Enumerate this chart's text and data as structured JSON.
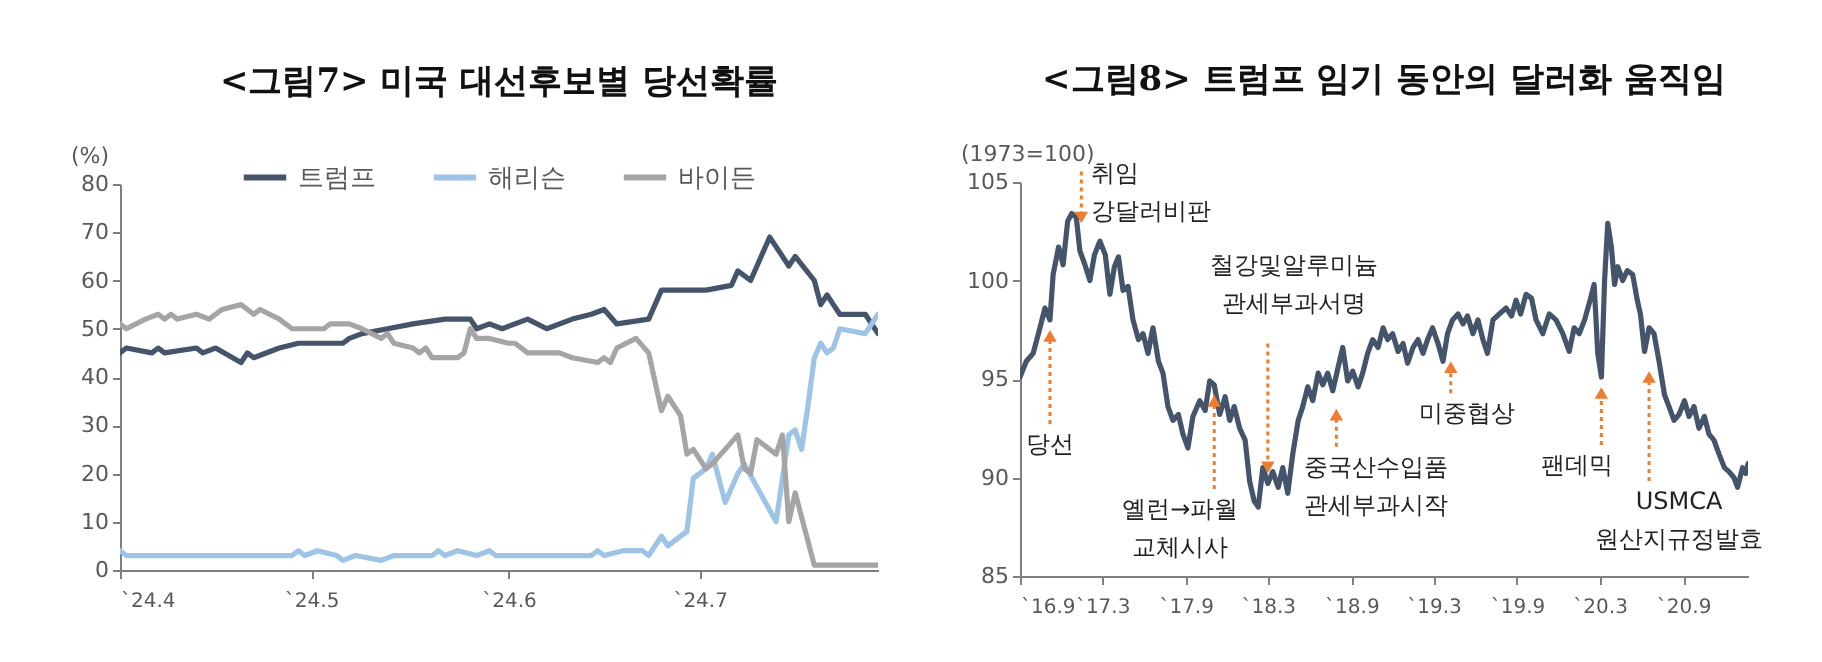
{
  "chart_data": [
    {
      "type": "line",
      "title": "<그림7> 미국 대선후보별 당선확률",
      "ylabel": "(%)",
      "legend": "top",
      "marker": "none",
      "line_style": "solid",
      "xlim": [
        "2024-04-01",
        "2024-07-29"
      ],
      "xticks": [
        {
          "value": "2024-04-01",
          "label": "`24.4"
        },
        {
          "value": "2024-05-01",
          "label": "`24.5"
        },
        {
          "value": "2024-06-01",
          "label": "`24.6"
        },
        {
          "value": "2024-07-01",
          "label": "`24.7"
        }
      ],
      "ylim": [
        0,
        80
      ],
      "yticks": [
        0,
        10,
        20,
        30,
        40,
        50,
        60,
        70,
        80
      ],
      "series": [
        {
          "name": "트럼프",
          "color": "#44546a",
          "x": [
            "2024-04-01",
            "2024-04-02",
            "2024-04-06",
            "2024-04-07",
            "2024-04-08",
            "2024-04-13",
            "2024-04-14",
            "2024-04-16",
            "2024-04-20",
            "2024-04-21",
            "2024-04-22",
            "2024-04-26",
            "2024-04-29",
            "2024-05-06",
            "2024-05-07",
            "2024-05-09",
            "2024-05-13",
            "2024-05-17",
            "2024-05-22",
            "2024-05-26",
            "2024-05-27",
            "2024-05-29",
            "2024-05-31",
            "2024-06-02",
            "2024-06-04",
            "2024-06-07",
            "2024-06-11",
            "2024-06-14",
            "2024-06-16",
            "2024-06-18",
            "2024-06-23",
            "2024-06-25",
            "2024-07-02",
            "2024-07-06",
            "2024-07-07",
            "2024-07-09",
            "2024-07-12",
            "2024-07-15",
            "2024-07-16",
            "2024-07-19",
            "2024-07-20",
            "2024-07-21",
            "2024-07-22",
            "2024-07-23",
            "2024-07-27",
            "2024-07-29"
          ],
          "values": [
            45,
            46,
            45,
            46,
            45,
            46,
            45,
            46,
            43,
            45,
            44,
            46,
            47,
            47,
            48,
            49,
            50,
            51,
            52,
            52,
            50,
            51,
            50,
            51,
            52,
            50,
            52,
            53,
            54,
            51,
            52,
            58,
            58,
            59,
            62,
            60,
            69,
            63,
            65,
            60,
            55,
            57,
            55,
            53,
            53,
            49
          ]
        },
        {
          "name": "해리슨",
          "color": "#9dc3e6",
          "x": [
            "2024-04-01",
            "2024-04-02",
            "2024-04-28",
            "2024-04-29",
            "2024-04-30",
            "2024-05-02",
            "2024-05-05",
            "2024-05-06",
            "2024-05-08",
            "2024-05-12",
            "2024-05-14",
            "2024-05-20",
            "2024-05-21",
            "2024-05-22",
            "2024-05-24",
            "2024-05-27",
            "2024-05-29",
            "2024-05-30",
            "2024-06-14",
            "2024-06-15",
            "2024-06-16",
            "2024-06-19",
            "2024-06-22",
            "2024-06-23",
            "2024-06-25",
            "2024-06-26",
            "2024-06-29",
            "2024-06-30",
            "2024-07-02",
            "2024-07-03",
            "2024-07-05",
            "2024-07-07",
            "2024-07-08",
            "2024-07-13",
            "2024-07-15",
            "2024-07-16",
            "2024-07-17",
            "2024-07-18",
            "2024-07-19",
            "2024-07-20",
            "2024-07-21",
            "2024-07-22",
            "2024-07-23",
            "2024-07-27",
            "2024-07-29"
          ],
          "values": [
            4,
            3,
            3,
            4,
            3,
            4,
            3,
            2,
            3,
            2,
            3,
            3,
            4,
            3,
            4,
            3,
            4,
            3,
            3,
            4,
            3,
            4,
            4,
            3,
            7,
            5,
            8,
            19,
            21,
            24,
            14,
            20,
            22,
            10,
            28,
            29,
            25,
            34,
            44,
            47,
            45,
            46,
            50,
            49,
            53
          ]
        },
        {
          "name": "바이든",
          "color": "#a5a5a5",
          "x": [
            "2024-04-01",
            "2024-04-02",
            "2024-04-05",
            "2024-04-07",
            "2024-04-08",
            "2024-04-09",
            "2024-04-10",
            "2024-04-13",
            "2024-04-15",
            "2024-04-17",
            "2024-04-20",
            "2024-04-22",
            "2024-04-23",
            "2024-04-26",
            "2024-04-28",
            "2024-05-03",
            "2024-05-04",
            "2024-05-07",
            "2024-05-09",
            "2024-05-12",
            "2024-05-13",
            "2024-05-14",
            "2024-05-17",
            "2024-05-18",
            "2024-05-19",
            "2024-05-20",
            "2024-05-24",
            "2024-05-25",
            "2024-05-26",
            "2024-05-27",
            "2024-05-29",
            "2024-06-01",
            "2024-06-02",
            "2024-06-04",
            "2024-06-09",
            "2024-06-11",
            "2024-06-15",
            "2024-06-16",
            "2024-06-17",
            "2024-06-18",
            "2024-06-21",
            "2024-06-23",
            "2024-06-25",
            "2024-06-26",
            "2024-06-28",
            "2024-06-29",
            "2024-06-30",
            "2024-07-02",
            "2024-07-03",
            "2024-07-07",
            "2024-07-08",
            "2024-07-09",
            "2024-07-10",
            "2024-07-13",
            "2024-07-14",
            "2024-07-15",
            "2024-07-16",
            "2024-07-19",
            "2024-07-29"
          ],
          "values": [
            51,
            50,
            52,
            53,
            52,
            53,
            52,
            53,
            52,
            54,
            55,
            53,
            54,
            52,
            50,
            50,
            51,
            51,
            50,
            48,
            49,
            47,
            46,
            45,
            46,
            44,
            44,
            45,
            50,
            48,
            48,
            47,
            47,
            45,
            45,
            44,
            43,
            44,
            43,
            46,
            48,
            45,
            33,
            36,
            32,
            24,
            25,
            21,
            22,
            28,
            21,
            20,
            27,
            24,
            28,
            10,
            16,
            1,
            1
          ]
        }
      ]
    },
    {
      "type": "line",
      "title": "<그림8> 트럼프 임기 동안의 달러화 움직임",
      "ylabel": "(1973=100)",
      "marker": "none",
      "line_style": "solid",
      "xlim": [
        "2016-09-01",
        "2021-01-22"
      ],
      "xticks": [
        {
          "value": "2016-09-01",
          "label": "`16.9"
        },
        {
          "value": "2017-03-01",
          "label": "`17.3"
        },
        {
          "value": "2017-09-01",
          "label": "`17.9"
        },
        {
          "value": "2018-03-01",
          "label": "`18.3"
        },
        {
          "value": "2018-09-01",
          "label": "`18.9"
        },
        {
          "value": "2019-03-01",
          "label": "`19.3"
        },
        {
          "value": "2019-09-01",
          "label": "`19.9"
        },
        {
          "value": "2020-03-01",
          "label": "`20.3"
        },
        {
          "value": "2020-09-01",
          "label": "`20.9"
        }
      ],
      "ylim": [
        85,
        105
      ],
      "yticks": [
        85,
        90,
        95,
        100,
        105
      ],
      "annotations": [
        {
          "text": "당선",
          "x": "2016-11-06",
          "y": 98.0
        },
        {
          "text": "취임\n강달러비판",
          "x": "2017-01-14",
          "y": 103.2
        },
        {
          "text": "옐런→파월\n교체시사",
          "x": "2017-11-03",
          "y": 94.7
        },
        {
          "text": "철강및알루미늄\n관세부과서명",
          "x": "2018-03-01",
          "y": 89.7
        },
        {
          "text": "중국산수입품\n관세부과시작",
          "x": "2018-07-30",
          "y": 93.9
        },
        {
          "text": "미중협상",
          "x": "2019-04-08",
          "y": 95.6
        },
        {
          "text": "팬데믹",
          "x": "2020-03-05",
          "y": 95.1
        },
        {
          "text": "USMCA\n원산지규정발효",
          "x": "2020-06-18",
          "y": 95.1
        }
      ],
      "series": [
        {
          "color": "#44546a",
          "x": [
            "2016-09-01",
            "2016-09-15",
            "2016-09-30",
            "2016-10-15",
            "2016-10-26",
            "2016-11-06",
            "2016-11-13",
            "2016-11-25",
            "2016-12-05",
            "2016-12-15",
            "2016-12-24",
            "2017-01-03",
            "2017-01-11",
            "2017-01-22",
            "2017-02-02",
            "2017-02-12",
            "2017-02-24",
            "2017-03-08",
            "2017-03-18",
            "2017-03-28",
            "2017-04-06",
            "2017-04-16",
            "2017-04-27",
            "2017-05-08",
            "2017-05-20",
            "2017-05-30",
            "2017-06-10",
            "2017-06-21",
            "2017-07-03",
            "2017-07-13",
            "2017-07-24",
            "2017-08-04",
            "2017-08-16",
            "2017-08-26",
            "2017-09-06",
            "2017-09-17",
            "2017-10-02",
            "2017-10-14",
            "2017-10-24",
            "2017-11-03",
            "2017-11-15",
            "2017-11-27",
            "2017-12-07",
            "2017-12-17",
            "2017-12-29",
            "2018-01-10",
            "2018-01-20",
            "2018-01-30",
            "2018-02-08",
            "2018-02-18",
            "2018-03-01",
            "2018-03-12",
            "2018-03-24",
            "2018-04-03",
            "2018-04-14",
            "2018-04-25",
            "2018-05-07",
            "2018-05-17",
            "2018-05-28",
            "2018-06-08",
            "2018-06-20",
            "2018-06-30",
            "2018-07-11",
            "2018-07-22",
            "2018-08-03",
            "2018-08-13",
            "2018-08-24",
            "2018-09-04",
            "2018-09-16",
            "2018-09-26",
            "2018-10-07",
            "2018-10-18",
            "2018-10-30",
            "2018-11-10",
            "2018-11-20",
            "2018-12-01",
            "2018-12-13",
            "2018-12-24",
            "2019-01-03",
            "2019-01-15",
            "2019-01-26",
            "2019-02-06",
            "2019-02-16",
            "2019-02-27",
            "2019-03-11",
            "2019-03-22",
            "2019-04-01",
            "2019-04-12",
            "2019-04-24",
            "2019-05-05",
            "2019-05-15",
            "2019-05-27",
            "2019-06-07",
            "2019-06-18",
            "2019-06-28",
            "2019-07-10",
            "2019-07-24",
            "2019-08-08",
            "2019-08-20",
            "2019-08-30",
            "2019-09-09",
            "2019-09-21",
            "2019-10-03",
            "2019-10-13",
            "2019-10-28",
            "2019-11-11",
            "2019-11-26",
            "2019-12-11",
            "2019-12-25",
            "2020-01-05",
            "2020-01-16",
            "2020-01-28",
            "2020-02-09",
            "2020-02-18",
            "2020-02-26",
            "2020-03-05",
            "2020-03-12",
            "2020-03-19",
            "2020-03-27",
            "2020-04-03",
            "2020-04-10",
            "2020-04-21",
            "2020-05-01",
            "2020-05-13",
            "2020-05-23",
            "2020-05-30",
            "2020-06-08",
            "2020-06-18",
            "2020-06-29",
            "2020-07-10",
            "2020-07-22",
            "2020-08-01",
            "2020-08-12",
            "2020-08-23",
            "2020-09-04",
            "2020-09-14",
            "2020-09-25",
            "2020-10-06",
            "2020-10-18",
            "2020-10-28",
            "2020-11-08",
            "2020-11-19",
            "2020-12-01",
            "2020-12-11",
            "2020-12-22",
            "2020-12-30",
            "2021-01-10",
            "2021-01-17",
            "2021-01-22"
          ],
          "values": [
            95.1,
            95.9,
            96.3,
            97.6,
            98.6,
            98.0,
            100.3,
            101.7,
            100.8,
            103.0,
            103.4,
            103.2,
            101.5,
            100.8,
            100.0,
            101.3,
            102.0,
            101.3,
            99.3,
            100.7,
            101.2,
            99.5,
            99.7,
            98.0,
            97.0,
            97.3,
            96.3,
            97.6,
            95.9,
            95.3,
            93.6,
            92.9,
            93.2,
            92.2,
            91.5,
            93.1,
            93.9,
            93.4,
            94.9,
            94.7,
            93.2,
            94.1,
            92.9,
            93.6,
            92.5,
            91.9,
            89.8,
            88.8,
            88.5,
            90.5,
            89.7,
            90.3,
            89.5,
            90.5,
            89.2,
            91.2,
            92.9,
            93.6,
            94.6,
            93.9,
            95.3,
            94.7,
            95.3,
            94.4,
            95.6,
            96.6,
            94.9,
            95.4,
            94.6,
            95.3,
            96.3,
            97.0,
            96.6,
            97.6,
            97.0,
            97.3,
            96.4,
            96.8,
            95.8,
            96.6,
            97.0,
            96.3,
            97.0,
            97.6,
            96.8,
            95.9,
            97.3,
            98.0,
            98.3,
            97.8,
            98.2,
            97.3,
            98.0,
            97.0,
            96.3,
            98.0,
            98.3,
            98.6,
            98.2,
            99.0,
            98.3,
            99.3,
            99.1,
            98.0,
            97.3,
            98.3,
            98.0,
            97.3,
            96.4,
            97.6,
            97.3,
            98.0,
            99.0,
            99.8,
            96.3,
            95.1,
            100.0,
            102.9,
            101.7,
            99.8,
            100.7,
            100.0,
            100.5,
            100.3,
            99.0,
            98.3,
            96.4,
            97.6,
            97.3,
            95.9,
            94.2,
            93.6,
            92.9,
            93.2,
            93.9,
            93.1,
            93.6,
            92.5,
            93.1,
            92.2,
            91.9,
            91.2,
            90.5,
            90.3,
            90.0,
            89.5,
            90.5,
            90.2,
            90.7
          ]
        }
      ]
    }
  ]
}
